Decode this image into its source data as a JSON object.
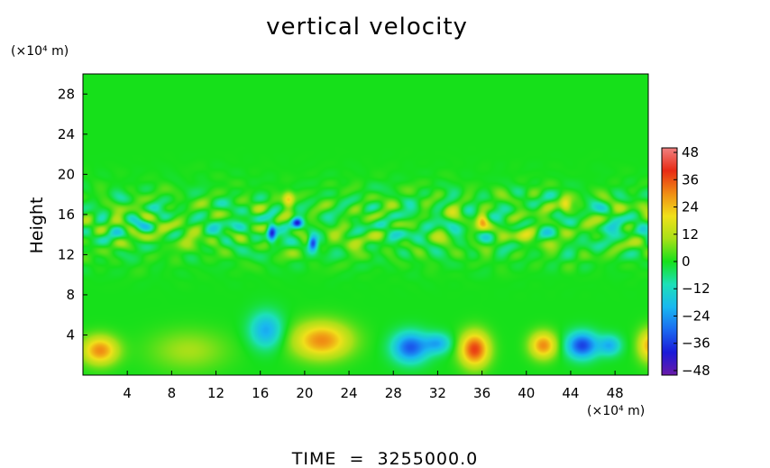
{
  "chart_data": {
    "type": "heatmap",
    "title": "vertical velocity",
    "ylabel": "Height",
    "y_unit": "(×10⁴ m)",
    "x_unit": "(×10⁴ m)",
    "footer": "TIME  =  3255000.0",
    "xlim": [
      0,
      51
    ],
    "ylim": [
      0,
      30
    ],
    "x_ticks": [
      4,
      8,
      12,
      16,
      20,
      24,
      28,
      32,
      36,
      40,
      44,
      48
    ],
    "y_ticks": [
      4,
      8,
      12,
      16,
      20,
      24,
      28
    ],
    "colorbar": {
      "ticks": [
        48,
        36,
        24,
        12,
        0,
        -12,
        -24,
        -36,
        -48
      ],
      "range": [
        -50,
        50
      ],
      "stops": [
        {
          "v": -50,
          "color": "#6a1aa8"
        },
        {
          "v": -40,
          "color": "#1a1ad8"
        },
        {
          "v": -30,
          "color": "#1a6af0"
        },
        {
          "v": -20,
          "color": "#19b8f0"
        },
        {
          "v": -10,
          "color": "#1de0b8"
        },
        {
          "v": 0,
          "color": "#16e01a"
        },
        {
          "v": 10,
          "color": "#a8e018"
        },
        {
          "v": 20,
          "color": "#f0e01a"
        },
        {
          "v": 30,
          "color": "#f08c14"
        },
        {
          "v": 40,
          "color": "#e82a14"
        },
        {
          "v": 50,
          "color": "#f08080"
        }
      ]
    },
    "features": [
      {
        "x": 1.5,
        "y": 2.5,
        "sx": 1.6,
        "sy": 1.4,
        "value": 30
      },
      {
        "x": 9.5,
        "y": 2.5,
        "sx": 3.5,
        "sy": 2.0,
        "value": 10
      },
      {
        "x": 16.5,
        "y": 4.5,
        "sx": 1.5,
        "sy": 1.8,
        "value": -22
      },
      {
        "x": 21.5,
        "y": 3.5,
        "sx": 2.6,
        "sy": 1.8,
        "value": 30
      },
      {
        "x": 29.5,
        "y": 2.8,
        "sx": 1.6,
        "sy": 1.5,
        "value": -32
      },
      {
        "x": 32.0,
        "y": 3.2,
        "sx": 1.2,
        "sy": 1.0,
        "value": -20
      },
      {
        "x": 35.3,
        "y": 2.6,
        "sx": 1.3,
        "sy": 1.7,
        "value": 38
      },
      {
        "x": 41.5,
        "y": 3.0,
        "sx": 1.2,
        "sy": 1.3,
        "value": 30
      },
      {
        "x": 45.0,
        "y": 3.0,
        "sx": 1.4,
        "sy": 1.3,
        "value": -35
      },
      {
        "x": 47.5,
        "y": 3.0,
        "sx": 1.0,
        "sy": 1.0,
        "value": -20
      },
      {
        "x": 51.0,
        "y": 3.0,
        "sx": 1.0,
        "sy": 1.6,
        "value": 25
      },
      {
        "x": 17.0,
        "y": 14.2,
        "sx": 0.4,
        "sy": 0.9,
        "value": -38
      },
      {
        "x": 19.3,
        "y": 15.2,
        "sx": 0.5,
        "sy": 0.5,
        "value": -40
      },
      {
        "x": 20.7,
        "y": 13.2,
        "sx": 0.4,
        "sy": 0.7,
        "value": -38
      },
      {
        "x": 18.5,
        "y": 17.5,
        "sx": 0.5,
        "sy": 0.8,
        "value": 22
      },
      {
        "x": 36.0,
        "y": 15.5,
        "sx": 0.5,
        "sy": 0.8,
        "value": 22
      },
      {
        "x": 40.0,
        "y": 14.0,
        "sx": 1.0,
        "sy": 0.8,
        "value": 12
      },
      {
        "x": 43.5,
        "y": 17.0,
        "sx": 0.5,
        "sy": 0.7,
        "value": 20
      },
      {
        "x": 24.5,
        "y": 13.5,
        "sx": 1.0,
        "sy": 0.8,
        "value": 12
      },
      {
        "x": 9.0,
        "y": 13.5,
        "sx": 1.5,
        "sy": 0.8,
        "value": 10
      },
      {
        "x": 13.5,
        "y": 15.0,
        "sx": 1.2,
        "sy": 0.8,
        "value": -10
      },
      {
        "x": 29.0,
        "y": 14.5,
        "sx": 1.2,
        "sy": 0.8,
        "value": -10
      },
      {
        "x": 47.5,
        "y": 14.5,
        "sx": 1.2,
        "sy": 0.8,
        "value": -10
      }
    ]
  }
}
